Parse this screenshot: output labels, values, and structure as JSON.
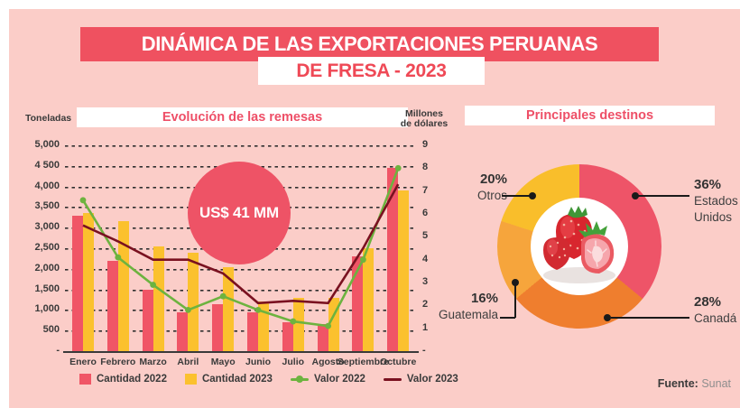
{
  "header": {
    "line1": "DINÁMICA DE LAS EXPORTACIONES PERUANAS",
    "line2": "DE FRESA - 2023"
  },
  "footer": {
    "source_label": "Fuente:",
    "source_value": "Sunat"
  },
  "colors": {
    "background_pink": "#fbcdc8",
    "banner_red": "#ef5160",
    "header_text_red": "#ee4f67",
    "bar_2022_red": "#f05566",
    "bar_2023_yellow": "#fbc12e",
    "line_2022_green": "#6db33f",
    "line_2023_maroon": "#7a1120",
    "badge_red": "#ee5366",
    "text_dark": "#3a3a3a"
  },
  "chart_data": [
    {
      "type": "bar",
      "subtype": "combo-bar-line",
      "title": "Evolución de las remesas",
      "annotation": "US$ 41 MM",
      "categories": [
        "Enero",
        "Febrero",
        "Marzo",
        "Abril",
        "Mayo",
        "Junio",
        "Julio",
        "Agosto",
        "Septiembre",
        "Octubre"
      ],
      "series": [
        {
          "name": "Cantidad 2022",
          "type": "bar",
          "axis": "left",
          "color": "#f05566",
          "marker": false,
          "values": [
            3300,
            2200,
            1500,
            950,
            1150,
            950,
            700,
            650,
            2300,
            4450
          ]
        },
        {
          "name": "Cantidad 2023",
          "type": "bar",
          "axis": "left",
          "color": "#fbc12e",
          "marker": false,
          "values": [
            3350,
            3150,
            2550,
            2400,
            2050,
            1200,
            1300,
            1300,
            2500,
            3900
          ]
        },
        {
          "name": "Valor 2022",
          "type": "line",
          "axis": "right",
          "color": "#6db33f",
          "marker": true,
          "values": [
            6.6,
            4.1,
            2.9,
            1.8,
            2.4,
            1.8,
            1.3,
            1.1,
            4.0,
            8.0
          ]
        },
        {
          "name": "Valor 2023",
          "type": "line",
          "axis": "right",
          "color": "#7a1120",
          "marker": false,
          "values": [
            5.5,
            4.8,
            4.0,
            4.0,
            3.4,
            2.1,
            2.2,
            2.1,
            4.5,
            7.3
          ]
        }
      ],
      "left_axis": {
        "label": "Toneladas",
        "min": 0,
        "max": 5000,
        "ticks": [
          "5,000",
          "4 500",
          "4,000",
          "3,500",
          "3,000",
          "2,500",
          "2,000",
          "1,500",
          "1,000",
          "500",
          "-"
        ]
      },
      "right_axis": {
        "label": "Millones de dólares",
        "label_lines": [
          "Millones",
          "de dólares"
        ],
        "min": 0,
        "max": 9,
        "ticks": [
          "9",
          "8",
          "7",
          "6",
          "5",
          "4",
          "3",
          "2",
          "1",
          "-"
        ]
      },
      "grid": "dashed-horizontal",
      "legend_position": "bottom"
    },
    {
      "type": "pie",
      "subtype": "donut",
      "title": "Principales destinos",
      "slices": [
        {
          "label": "Estados Unidos",
          "pct": 36,
          "pct_text": "36%",
          "color": "#ee5468"
        },
        {
          "label": "Canadá",
          "pct": 28,
          "pct_text": "28%",
          "color": "#ef7e2e"
        },
        {
          "label": "Guatemala",
          "pct": 16,
          "pct_text": "16%",
          "color": "#f6a53c"
        },
        {
          "label": "Otros",
          "pct": 20,
          "pct_text": "20%",
          "color": "#f9be2b"
        }
      ],
      "center_image": "strawberries",
      "start_angle_deg": 0,
      "direction": "clockwise"
    }
  ]
}
